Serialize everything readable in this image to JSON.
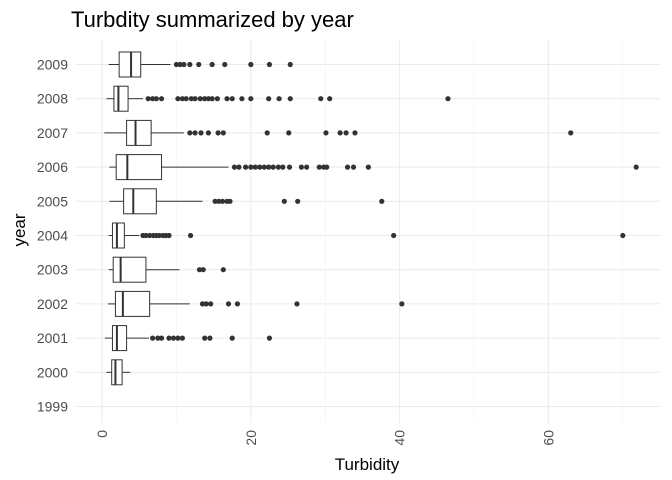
{
  "chart_data": {
    "type": "boxplot",
    "orientation": "horizontal",
    "title": "Turbdity summarized by year",
    "xlabel": "Turbidity",
    "ylabel": "year",
    "xlim": [
      -3.5,
      75
    ],
    "x_ticks": [
      0,
      20,
      40,
      60
    ],
    "x_tick_labels": [
      "0",
      "20",
      "40",
      "60"
    ],
    "x_tick_rotation": -90,
    "categories": [
      "1999",
      "2000",
      "2001",
      "2002",
      "2003",
      "2004",
      "2005",
      "2006",
      "2007",
      "2008",
      "2009"
    ],
    "grid": true,
    "theme": "minimal",
    "boxes": [
      {
        "year": "1999",
        "empty": true
      },
      {
        "year": "2000",
        "whisker_low": 0.6,
        "q1": 1.3,
        "median": 1.8,
        "q3": 2.7,
        "whisker_high": 3.8,
        "outliers": []
      },
      {
        "year": "2001",
        "whisker_low": 0.4,
        "q1": 1.4,
        "median": 2.0,
        "q3": 3.3,
        "whisker_high": 6.3,
        "outliers": [
          6.8,
          7.5,
          8.0,
          9.0,
          9.6,
          10.2,
          10.8,
          13.8,
          14.5,
          17.5,
          22.5
        ]
      },
      {
        "year": "2002",
        "whisker_low": 0.8,
        "q1": 1.8,
        "median": 2.8,
        "q3": 6.4,
        "whisker_high": 11.8,
        "outliers": [
          13.5,
          14.0,
          14.6,
          17.0,
          18.2,
          26.2,
          40.3
        ]
      },
      {
        "year": "2003",
        "whisker_low": 0.9,
        "q1": 1.5,
        "median": 2.5,
        "q3": 5.9,
        "whisker_high": 10.4,
        "outliers": [
          13.1,
          13.6,
          16.3
        ]
      },
      {
        "year": "2004",
        "whisker_low": 0.9,
        "q1": 1.4,
        "median": 2.0,
        "q3": 3.0,
        "whisker_high": 5.0,
        "outliers": [
          5.5,
          5.9,
          6.4,
          6.9,
          7.3,
          7.7,
          8.2,
          8.6,
          9.0,
          11.9,
          39.2,
          70.0
        ]
      },
      {
        "year": "2005",
        "whisker_low": 1.0,
        "q1": 2.9,
        "median": 4.2,
        "q3": 7.3,
        "whisker_high": 13.5,
        "outliers": [
          15.2,
          15.7,
          16.2,
          16.8,
          17.2,
          24.5,
          26.3,
          37.6
        ]
      },
      {
        "year": "2006",
        "whisker_low": 1.0,
        "q1": 1.9,
        "median": 3.4,
        "q3": 8.0,
        "whisker_high": 17.0,
        "outliers": [
          17.8,
          18.4,
          19.3,
          20.0,
          20.6,
          21.2,
          21.8,
          22.4,
          23.0,
          23.7,
          24.3,
          25.2,
          26.8,
          27.5,
          29.2,
          29.8,
          30.2,
          33.0,
          33.8,
          35.8,
          71.8
        ]
      },
      {
        "year": "2007",
        "whisker_low": 0.3,
        "q1": 3.3,
        "median": 4.5,
        "q3": 6.6,
        "whisker_high": 11.0,
        "outliers": [
          11.8,
          12.5,
          13.3,
          14.3,
          15.6,
          16.3,
          22.2,
          25.1,
          30.1,
          32.0,
          32.8,
          34.0,
          63.0
        ]
      },
      {
        "year": "2008",
        "whisker_low": 0.6,
        "q1": 1.6,
        "median": 2.2,
        "q3": 3.5,
        "whisker_high": 5.5,
        "outliers": [
          6.2,
          6.8,
          7.3,
          8.0,
          10.2,
          10.8,
          11.3,
          12.0,
          12.5,
          13.2,
          13.8,
          14.3,
          14.8,
          15.5,
          16.8,
          17.5,
          18.8,
          20.0,
          22.4,
          23.8,
          25.3,
          29.4,
          30.6,
          46.5
        ]
      },
      {
        "year": "2009",
        "whisker_low": 0.9,
        "q1": 2.3,
        "median": 3.9,
        "q3": 5.2,
        "whisker_high": 9.2,
        "outliers": [
          10.0,
          10.5,
          11.0,
          11.8,
          13.0,
          14.8,
          16.5,
          20.0,
          22.5,
          25.3
        ]
      }
    ]
  }
}
